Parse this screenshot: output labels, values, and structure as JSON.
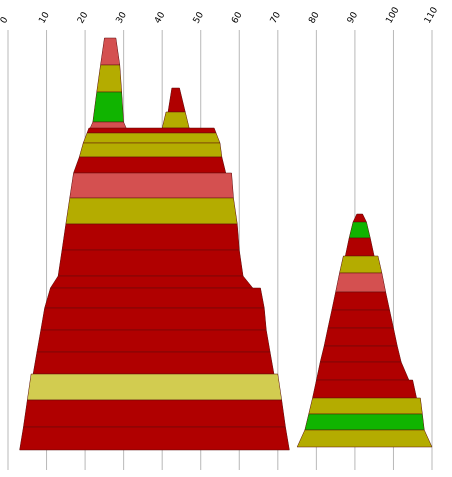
{
  "chart_data": {
    "type": "area",
    "x_axis": {
      "min": 0,
      "max": 110,
      "ticks": [
        0,
        10,
        20,
        30,
        40,
        50,
        60,
        70,
        80,
        90,
        100,
        110
      ],
      "position": "top"
    },
    "grid": true,
    "legend": "none",
    "colors": {
      "red": "#b00000",
      "salmon": "#d45050",
      "olive": "#b4ac00",
      "lime": "#d2cc50",
      "green": "#10b400"
    },
    "shapes": [
      {
        "name": "peak-left",
        "bands": [
          {
            "color": "salmon",
            "left": [
              25.0,
              24.0
            ],
            "right": [
              28.0,
              29.0
            ]
          },
          {
            "color": "olive",
            "left": [
              24.0,
              23.0
            ],
            "right": [
              29.0,
              29.5
            ]
          },
          {
            "color": "green",
            "left": [
              23.0,
              22.0
            ],
            "right": [
              29.5,
              30.0
            ]
          },
          {
            "color": "salmon",
            "left": [
              22.0,
              21.0
            ],
            "right": [
              30.0,
              31.0
            ]
          }
        ]
      },
      {
        "name": "peak-middle",
        "bands": [
          {
            "color": "red",
            "left": [
              42.5,
              41.5
            ],
            "right": [
              44.5,
              46.0
            ]
          },
          {
            "color": "olive",
            "left": [
              41.0,
              40.0
            ],
            "right": [
              46.0,
              47.0
            ]
          }
        ]
      },
      {
        "name": "main-mountain",
        "bands": [
          {
            "color": "red",
            "left": [
              21.0,
              20.5
            ],
            "right": [
              53.5,
              54.0
            ]
          },
          {
            "color": "olive",
            "left": [
              20.5,
              19.5
            ],
            "right": [
              54.0,
              55.0
            ]
          },
          {
            "color": "olive",
            "left": [
              19.5,
              18.5
            ],
            "right": [
              55.0,
              55.5
            ]
          },
          {
            "color": "red",
            "left": [
              18.5,
              17.0
            ],
            "right": [
              55.5,
              56.5
            ]
          },
          {
            "color": "salmon",
            "left": [
              17.0,
              16.0
            ],
            "right": [
              58.0,
              58.5
            ]
          },
          {
            "color": "olive",
            "left": [
              16.0,
              15.0
            ],
            "right": [
              58.5,
              59.5
            ]
          },
          {
            "color": "red",
            "left": [
              15.0,
              14.0
            ],
            "right": [
              59.5,
              60.0
            ]
          },
          {
            "color": "red",
            "left": [
              14.0,
              13.0
            ],
            "right": [
              60.0,
              61.0
            ]
          },
          {
            "color": "red",
            "left": [
              13.0,
              11.0
            ],
            "right": [
              61.0,
              63.5
            ]
          },
          {
            "color": "red",
            "left": [
              11.0,
              9.5
            ],
            "right": [
              65.5,
              66.5
            ]
          },
          {
            "color": "red",
            "left": [
              9.5,
              8.5
            ],
            "right": [
              66.5,
              67.0
            ]
          },
          {
            "color": "red",
            "left": [
              8.5,
              7.5
            ],
            "right": [
              67.0,
              68.0
            ]
          },
          {
            "color": "red",
            "left": [
              7.5,
              6.5
            ],
            "right": [
              68.0,
              69.0
            ]
          },
          {
            "color": "lime",
            "left": [
              6.0,
              5.0
            ],
            "right": [
              70.0,
              71.0
            ]
          },
          {
            "color": "red",
            "left": [
              5.0,
              4.0
            ],
            "right": [
              71.0,
              72.0
            ]
          },
          {
            "color": "red",
            "left": [
              4.0,
              3.0
            ],
            "right": [
              72.0,
              73.0
            ]
          }
        ]
      },
      {
        "name": "right-mountain",
        "bands": [
          {
            "color": "red",
            "left": [
              90.5,
              89.5
            ],
            "right": [
              92.0,
              93.0
            ]
          },
          {
            "color": "green",
            "left": [
              89.5,
              88.5
            ],
            "right": [
              93.0,
              94.0
            ]
          },
          {
            "color": "red",
            "left": [
              88.5,
              87.5
            ],
            "right": [
              94.0,
              95.0
            ]
          },
          {
            "color": "olive",
            "left": [
              87.0,
              86.0
            ],
            "right": [
              96.0,
              97.0
            ]
          },
          {
            "color": "salmon",
            "left": [
              86.0,
              85.0
            ],
            "right": [
              97.0,
              98.0
            ]
          },
          {
            "color": "red",
            "left": [
              85.0,
              84.0
            ],
            "right": [
              98.0,
              99.0
            ]
          },
          {
            "color": "red",
            "left": [
              84.0,
              83.0
            ],
            "right": [
              99.0,
              100.0
            ]
          },
          {
            "color": "red",
            "left": [
              83.0,
              82.0
            ],
            "right": [
              100.0,
              101.0
            ]
          },
          {
            "color": "red",
            "left": [
              82.0,
              81.0
            ],
            "right": [
              101.0,
              102.0
            ]
          },
          {
            "color": "red",
            "left": [
              81.0,
              80.0
            ],
            "right": [
              102.0,
              104.0
            ]
          },
          {
            "color": "red",
            "left": [
              80.0,
              79.0
            ],
            "right": [
              105.0,
              106.0
            ]
          },
          {
            "color": "olive",
            "left": [
              79.0,
              78.0
            ],
            "right": [
              107.0,
              107.5
            ]
          },
          {
            "color": "green",
            "left": [
              78.0,
              77.0
            ],
            "right": [
              107.5,
              108.0
            ]
          },
          {
            "color": "olive",
            "left": [
              77.0,
              75.0
            ],
            "right": [
              108.0,
              110.0
            ]
          }
        ]
      }
    ]
  }
}
